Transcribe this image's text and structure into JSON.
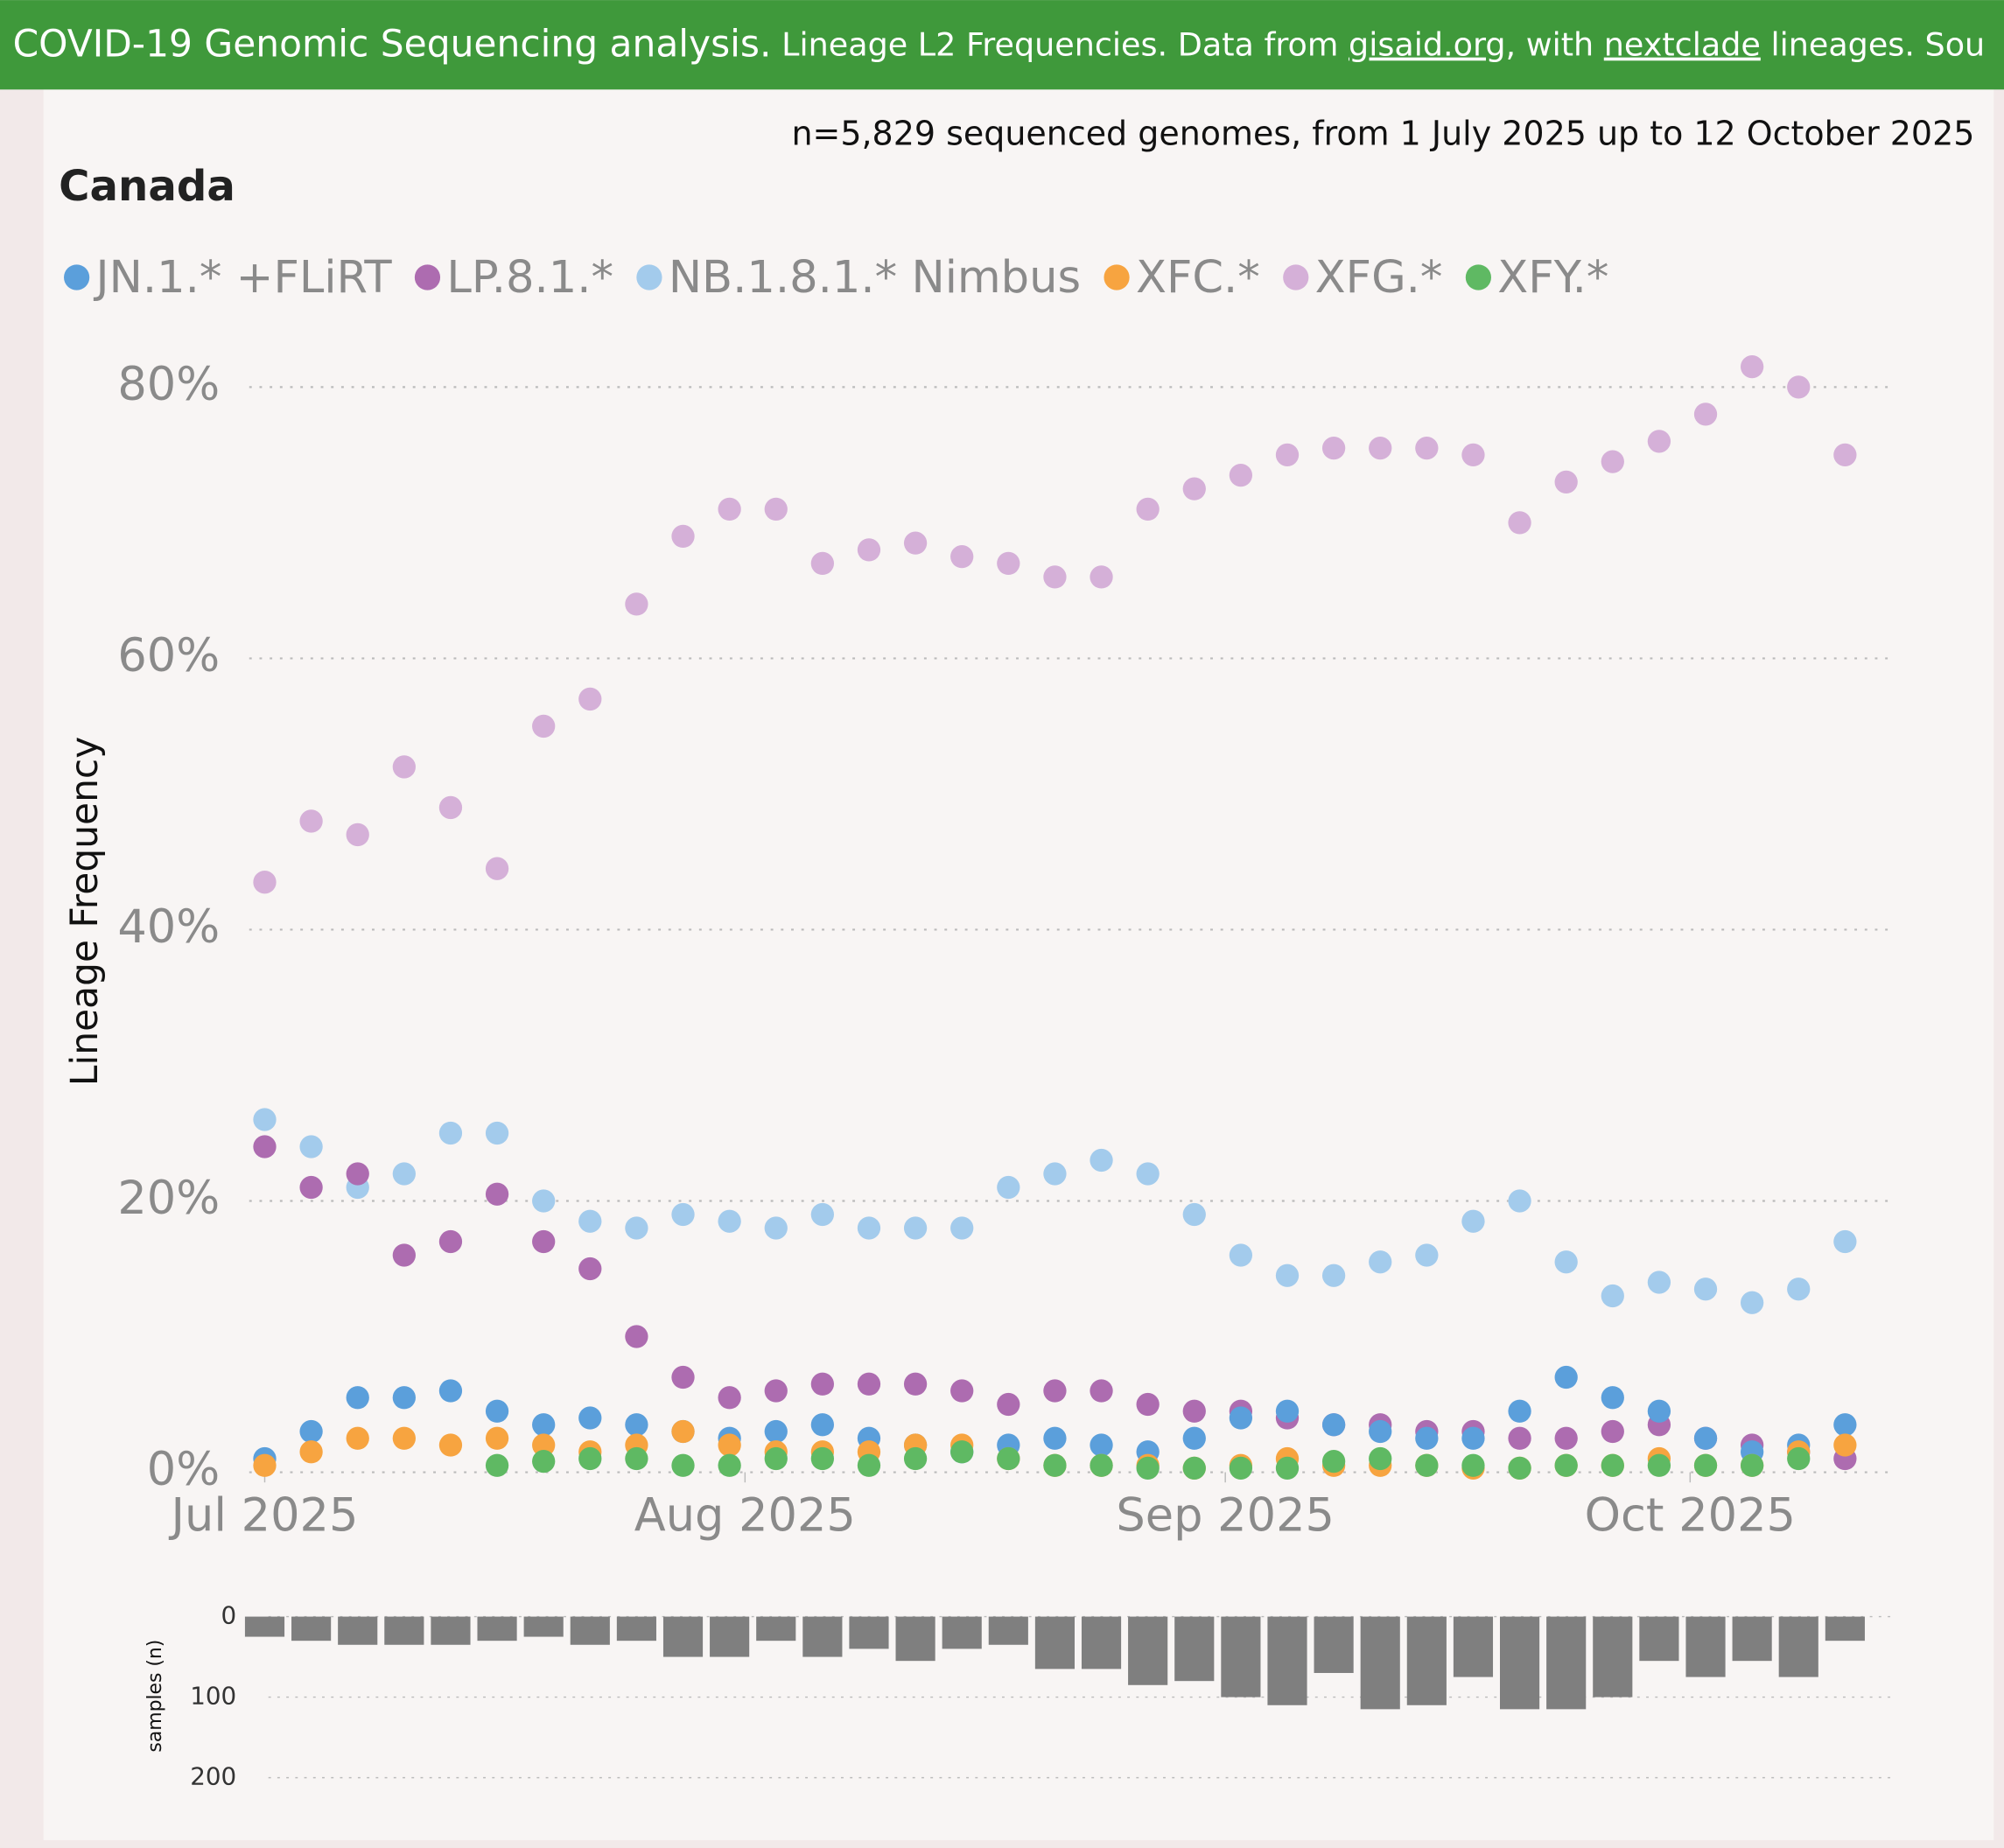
{
  "header": {
    "parts": [
      "COVID-19 Genomic Sequencing analysis.",
      "Lineage L2 Frequencies. Data from ",
      "gisaid.org",
      ", with ",
      "nextclade",
      " lineages. Sou"
    ]
  },
  "chart_data": [
    {
      "type": "scatter",
      "title": "Canada",
      "subtitle": "n=5,829 sequenced genomes, from 1 July 2025 up to 12 October 2025",
      "y_label": "Lineage Frequency",
      "x": [
        0,
        3,
        6,
        9,
        12,
        15,
        18,
        21,
        24,
        27,
        30,
        33,
        36,
        39,
        42,
        45,
        48,
        51,
        54,
        57,
        60,
        63,
        66,
        69,
        72,
        75,
        78,
        81,
        84,
        87,
        90,
        93,
        96,
        99,
        102
      ],
      "xlim": [
        -1,
        105
      ],
      "xticks": [
        {
          "value": 0,
          "label": "Jul 2025"
        },
        {
          "value": 31,
          "label": "Aug 2025"
        },
        {
          "value": 62,
          "label": "Sep 2025"
        },
        {
          "value": 92,
          "label": "Oct 2025"
        }
      ],
      "ylim": [
        0,
        83
      ],
      "yticks": [
        {
          "value": 0,
          "label": "0%"
        },
        {
          "value": 20,
          "label": "20%"
        },
        {
          "value": 40,
          "label": "40%"
        },
        {
          "value": 60,
          "label": "60%"
        },
        {
          "value": 80,
          "label": "80%"
        }
      ],
      "grid": true,
      "series": [
        {
          "name": "JN.1.* +FLiRT",
          "color": "#5b9fdb",
          "values": [
            1,
            3,
            5.5,
            5.5,
            6,
            4.5,
            3.5,
            4,
            3.5,
            3,
            2.5,
            3,
            3.5,
            2.5,
            2,
            1.5,
            2,
            2.5,
            2,
            1.5,
            2.5,
            4,
            4.5,
            3.5,
            3,
            2.5,
            2.5,
            4.5,
            7,
            5.5,
            4.5,
            2.5,
            1.5,
            2,
            3.5
          ]
        },
        {
          "name": "LP.8.1.*",
          "color": "#ad6cb0",
          "values": [
            24,
            21,
            22,
            16,
            17,
            20.5,
            17,
            15,
            10,
            7,
            5.5,
            6,
            6.5,
            6.5,
            6.5,
            6,
            5,
            6,
            6,
            5,
            4.5,
            4.5,
            4,
            3.5,
            3.5,
            3,
            3,
            2.5,
            2.5,
            3,
            3.5,
            2.5,
            2,
            1.5,
            1
          ]
        },
        {
          "name": "NB.1.8.1.* Nimbus",
          "color": "#a3cbec",
          "values": [
            26,
            24,
            21,
            22,
            25,
            25,
            20,
            18.5,
            18,
            19,
            18.5,
            18,
            19,
            18,
            18,
            18,
            21,
            22,
            23,
            22,
            19,
            16,
            14.5,
            14.5,
            15.5,
            16,
            18.5,
            20,
            15.5,
            13,
            14,
            13.5,
            12.5,
            13.5,
            17
          ]
        },
        {
          "name": "XFC.*",
          "color": "#f7a440",
          "values": [
            0.5,
            1.5,
            2.5,
            2.5,
            2,
            2.5,
            2,
            1.5,
            2,
            3,
            2,
            1.5,
            1.5,
            1.5,
            2,
            2,
            1,
            0.5,
            0.5,
            0.5,
            0.3,
            0.5,
            1,
            0.5,
            0.5,
            0.5,
            0.3,
            0.3,
            0.5,
            0.5,
            1,
            0.5,
            0.5,
            1.5,
            2
          ]
        },
        {
          "name": "XFG.*",
          "color": "#d5b0d8",
          "values": [
            43.5,
            48,
            47,
            52,
            49,
            44.5,
            55,
            57,
            64,
            69,
            71,
            71,
            67,
            68,
            68.5,
            67.5,
            67,
            66,
            66,
            71,
            72.5,
            73.5,
            75,
            75.5,
            75.5,
            75.5,
            75,
            70,
            73,
            74.5,
            76,
            78,
            81.5,
            80,
            75
          ]
        },
        {
          "name": "XFY.*",
          "color": "#5fb963",
          "values": [
            null,
            null,
            null,
            null,
            null,
            0.5,
            0.8,
            1,
            1,
            0.5,
            0.5,
            1,
            1,
            0.5,
            1,
            1.5,
            1,
            0.5,
            0.5,
            0.3,
            0.3,
            0.3,
            0.3,
            0.8,
            1,
            0.5,
            0.5,
            0.3,
            0.5,
            0.5,
            0.5,
            0.5,
            0.5,
            1,
            null
          ]
        }
      ]
    },
    {
      "type": "bar",
      "y_label": "samples (n)",
      "color": "#7f7f7f",
      "x": [
        0,
        3,
        6,
        9,
        12,
        15,
        18,
        21,
        24,
        27,
        30,
        33,
        36,
        39,
        42,
        45,
        48,
        51,
        54,
        57,
        60,
        63,
        66,
        69,
        72,
        75,
        78,
        81,
        84,
        87,
        90,
        93,
        96,
        99,
        102
      ],
      "xlim": [
        -1,
        105
      ],
      "values": [
        25,
        30,
        35,
        35,
        35,
        30,
        25,
        35,
        30,
        50,
        50,
        30,
        50,
        40,
        55,
        40,
        35,
        65,
        65,
        85,
        80,
        100,
        110,
        70,
        115,
        110,
        75,
        115,
        115,
        100,
        55,
        75,
        55,
        75,
        30
      ],
      "ylim": [
        0,
        200
      ],
      "yticks": [
        0,
        100,
        200
      ],
      "grid": true
    }
  ]
}
